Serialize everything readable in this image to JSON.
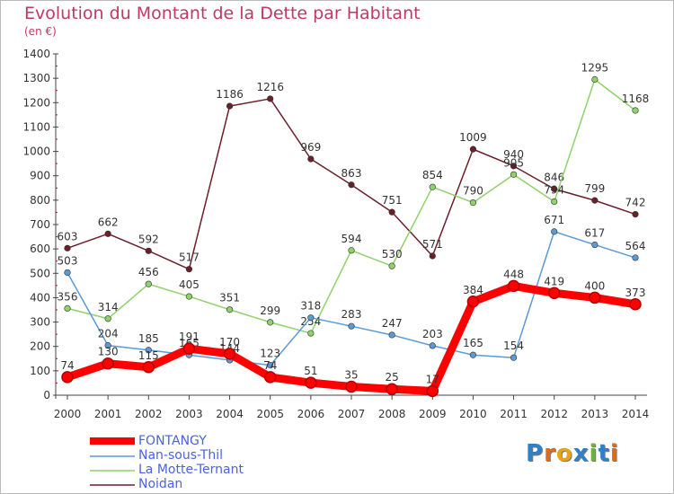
{
  "title": "Evolution du Montant de la Dette par Habitant",
  "subtitle": "(en €)",
  "logo_text": "Proxiti",
  "chart_data": {
    "type": "line",
    "x": [
      "2000",
      "2001",
      "2002",
      "2003",
      "2004",
      "2005",
      "2006",
      "2007",
      "2008",
      "2009",
      "2010",
      "2011",
      "2012",
      "2013",
      "2014"
    ],
    "ylim": [
      0,
      1400
    ],
    "yticks": [
      0,
      100,
      200,
      300,
      400,
      500,
      600,
      700,
      800,
      900,
      1000,
      1100,
      1200,
      1300,
      1400
    ],
    "grid": false,
    "legend_position": "bottom-left",
    "series": [
      {
        "name": "Noidan",
        "color": "#6b1f2a",
        "values": [
          603,
          662,
          592,
          517,
          1186,
          1216,
          969,
          863,
          751,
          571,
          1009,
          940,
          846,
          799,
          742
        ],
        "labels": [
          "603",
          "662",
          "592",
          "517",
          "1186",
          "1216",
          "969",
          "863",
          "751",
          "571",
          "1009",
          "940",
          "846",
          "799",
          "742"
        ]
      },
      {
        "name": "La Motte-Ternant",
        "color": "#8fd16a",
        "values": [
          356,
          314,
          456,
          405,
          351,
          299,
          254,
          594,
          530,
          854,
          790,
          905,
          794,
          1295,
          1168
        ],
        "labels": [
          "356",
          "314",
          "456",
          "405",
          "351",
          "299",
          "254",
          "594",
          "530",
          "854",
          "790",
          "905",
          "794",
          "1295",
          "1168"
        ]
      },
      {
        "name": "Nan-sous-Thil",
        "color": "#5a9ad6",
        "values": [
          503,
          204,
          185,
          165,
          144,
          123,
          318,
          283,
          247,
          203,
          165,
          154,
          671,
          617,
          564
        ],
        "labels": [
          "503",
          "204",
          "185",
          "165",
          "144",
          "123",
          "318",
          "283",
          "247",
          "203",
          "165",
          "154",
          "671",
          "617",
          "564"
        ]
      },
      {
        "name": "FONTANGY",
        "color": "#ff0000",
        "values": [
          74,
          130,
          115,
          191,
          170,
          74,
          51,
          35,
          25,
          17,
          384,
          448,
          419,
          400,
          373
        ],
        "labels": [
          "74",
          "130",
          "115",
          "191",
          "170",
          "74",
          "51",
          "35",
          "25",
          "17",
          "384",
          "448",
          "419",
          "400",
          "373"
        ]
      }
    ]
  }
}
